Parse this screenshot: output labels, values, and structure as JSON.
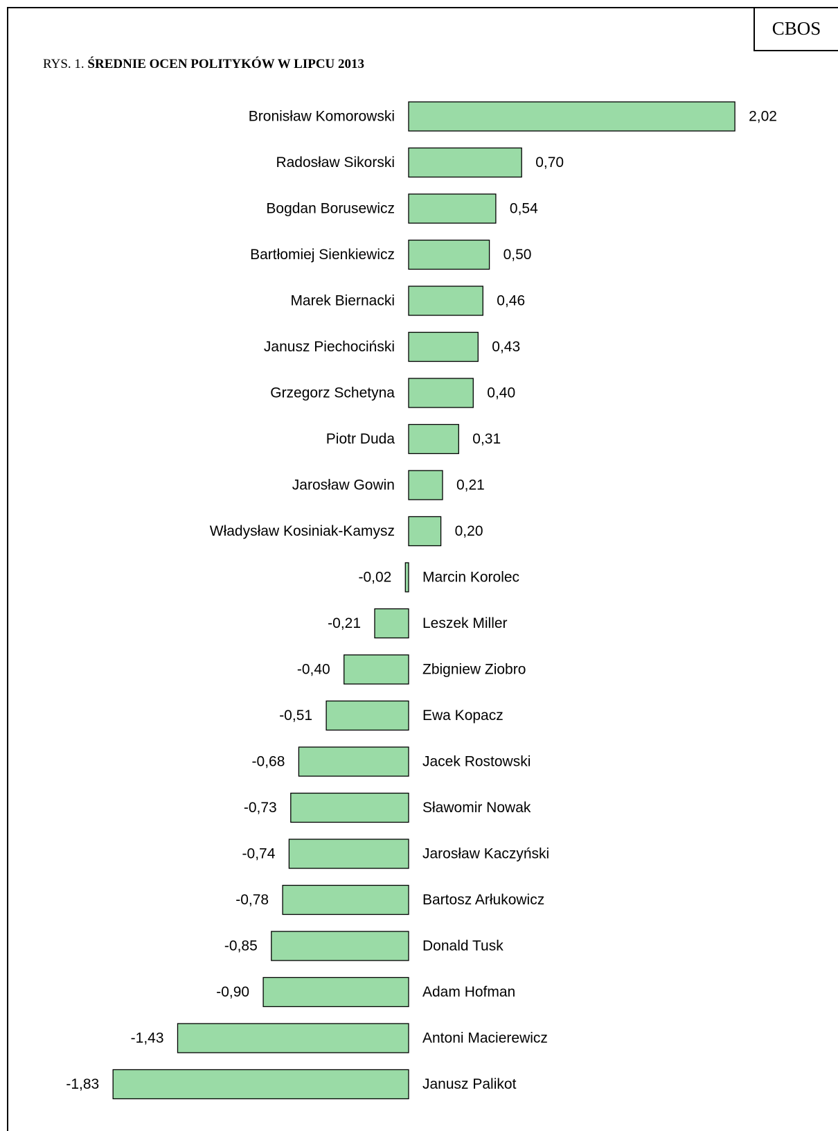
{
  "brand": "CBOS",
  "caption": {
    "prefix": "RYS. 1. ",
    "title": "ŚREDNIE OCEN POLITYKÓW W LIPCU 2013"
  },
  "colors": {
    "bar_fill": "#9adba6",
    "bar_stroke": "#000000"
  },
  "chart_data": {
    "type": "bar",
    "orientation": "horizontal",
    "title": "ŚREDNIE OCEN POLITYKÓW W LIPCU 2013",
    "categories": [
      "Bronisław Komorowski",
      "Radosław Sikorski",
      "Bogdan Borusewicz",
      "Bartłomiej Sienkiewicz",
      "Marek Biernacki",
      "Janusz Piechociński",
      "Grzegorz Schetyna",
      "Piotr Duda",
      "Jarosław Gowin",
      "Władysław Kosiniak-Kamysz",
      "Marcin Korolec",
      "Leszek Miller",
      "Zbigniew Ziobro",
      "Ewa Kopacz",
      "Jacek Rostowski",
      "Sławomir Nowak",
      "Jarosław Kaczyński",
      "Bartosz Arłukowicz",
      "Donald Tusk",
      "Adam Hofman",
      "Antoni Macierewicz",
      "Janusz Palikot"
    ],
    "values": [
      2.02,
      0.7,
      0.54,
      0.5,
      0.46,
      0.43,
      0.4,
      0.31,
      0.21,
      0.2,
      -0.02,
      -0.21,
      -0.4,
      -0.51,
      -0.68,
      -0.73,
      -0.74,
      -0.78,
      -0.85,
      -0.9,
      -1.43,
      -1.83
    ],
    "value_labels": [
      "2,02",
      "0,70",
      "0,54",
      "0,50",
      "0,46",
      "0,43",
      "0,40",
      "0,31",
      "0,21",
      "0,20",
      "-0,02",
      "-0,21",
      "-0,40",
      "-0,51",
      "-0,68",
      "-0,73",
      "-0,74",
      "-0,78",
      "-0,85",
      "-0,90",
      "-1,43",
      "-1,83"
    ],
    "grid": false,
    "legend": "none"
  }
}
